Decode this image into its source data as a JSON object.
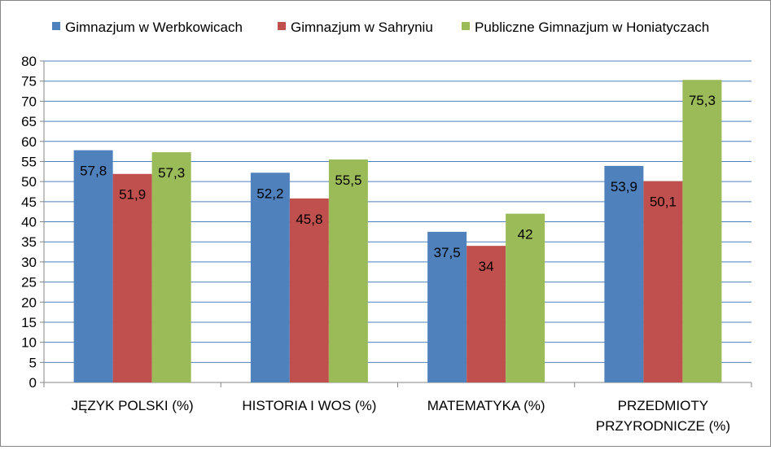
{
  "chart_data": {
    "type": "bar",
    "categories": [
      [
        "JĘZYK POLSKI (%)"
      ],
      [
        "HISTORIA I WOS (%)"
      ],
      [
        "MATEMATYKA (%)"
      ],
      [
        "PRZEDMIOTY",
        "PRZYRODNICZE (%)"
      ]
    ],
    "series": [
      {
        "name": "Gimnazjum w Werbkowicach",
        "color": "#4F81BD",
        "values": [
          57.8,
          52.2,
          37.5,
          53.9
        ],
        "labels": [
          "57,8",
          "52,2",
          "37,5",
          "53,9"
        ]
      },
      {
        "name": "Gimnazjum w Sahryniu",
        "color": "#C0504D",
        "values": [
          51.9,
          45.8,
          34,
          50.1
        ],
        "labels": [
          "51,9",
          "45,8",
          "34",
          "50,1"
        ]
      },
      {
        "name": "Publiczne Gimnazjum w Honiatyczach",
        "color": "#9BBB59",
        "values": [
          57.3,
          55.5,
          42,
          75.3
        ],
        "labels": [
          "57,3",
          "55,5",
          "42",
          "75,3"
        ]
      }
    ],
    "ylim": [
      0,
      80
    ],
    "ytick_step": 5,
    "grid": true,
    "legend_position": "top",
    "gridline_color": "#4F81BD"
  }
}
